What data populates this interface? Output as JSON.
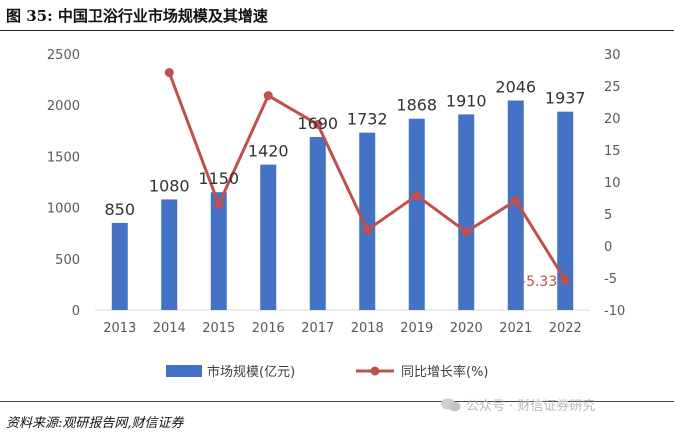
{
  "figure_title": "图 35:  中国卫浴行业市场规模及其增速",
  "source_text": "资料来源:观研报告网,财信证券",
  "watermark_text": "公众号 · 财信证券研究",
  "colors": {
    "bar": "#4472C4",
    "line": "#C0504D",
    "axis_text": "#595959",
    "neg_label": "#C0504D"
  },
  "chart_data": {
    "type": "bar+line",
    "categories": [
      "2013",
      "2014",
      "2015",
      "2016",
      "2017",
      "2018",
      "2019",
      "2020",
      "2021",
      "2022"
    ],
    "series": [
      {
        "name": "市场规模(亿元)",
        "type": "bar",
        "axis": "left",
        "values": [
          850,
          1080,
          1150,
          1420,
          1690,
          1732,
          1868,
          1910,
          2046,
          1937
        ],
        "labels": [
          "850",
          "1080",
          "1150",
          "1420",
          "1690",
          "1732",
          "1868",
          "1910",
          "2046",
          "1937"
        ]
      },
      {
        "name": "同比增长率(%)",
        "type": "line",
        "axis": "right",
        "values": [
          null,
          27.1,
          6.5,
          23.5,
          19.0,
          2.5,
          7.9,
          2.2,
          7.1,
          -5.33
        ],
        "labels": [
          "-5.33"
        ],
        "label_index": [
          9
        ]
      }
    ],
    "left_axis": {
      "min": 0,
      "max": 2500,
      "ticks": [
        "0",
        "500",
        "1000",
        "1500",
        "2000",
        "2500"
      ]
    },
    "right_axis": {
      "min": -10,
      "max": 30,
      "ticks": [
        "-10",
        "-5",
        "0",
        "5",
        "10",
        "15",
        "20",
        "25",
        "30"
      ]
    },
    "legend": {
      "position": "bottom",
      "entries": [
        "市场规模(亿元)",
        "同比增长率(%)"
      ]
    }
  }
}
